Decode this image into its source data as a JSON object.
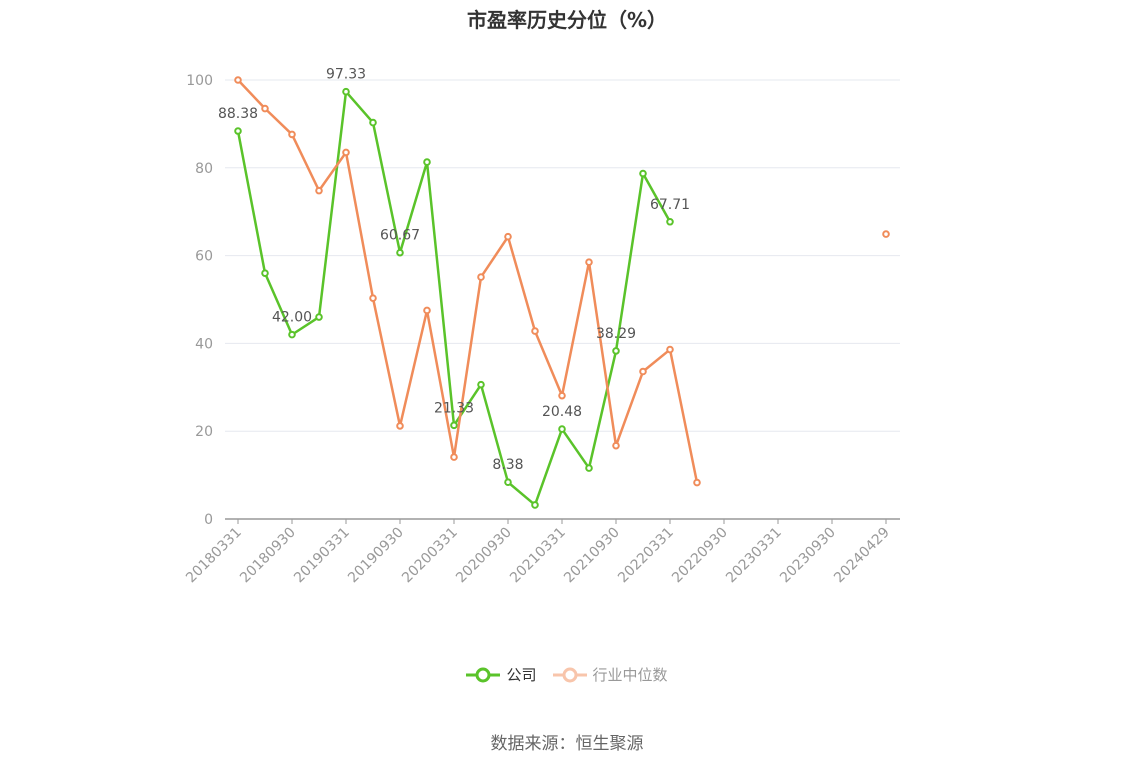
{
  "chart_data": {
    "type": "line",
    "title": "市盈率历史分位（%）",
    "x": [
      "20180331",
      "20180630",
      "20180930",
      "20181231",
      "20190331",
      "20190630",
      "20190930",
      "20191231",
      "20200331",
      "20200630",
      "20200930",
      "20201231",
      "20210331",
      "20210630",
      "20210930",
      "20211231",
      "20220331",
      "20220630",
      "20220930",
      "20221231",
      "20230331",
      "20230630",
      "20230930",
      "20231231",
      "20240429"
    ],
    "x_tick_labels": [
      "20180331",
      "20180930",
      "20190331",
      "20190930",
      "20200331",
      "20200930",
      "20210331",
      "20210930",
      "20220331",
      "20220930",
      "20230331",
      "20230930",
      "20240429"
    ],
    "ylim": [
      0,
      100
    ],
    "y_ticks": [
      0,
      20,
      40,
      60,
      80,
      100
    ],
    "grid": true,
    "legend_position": "bottom",
    "series": [
      {
        "name": "公司",
        "color": "#5ac32a",
        "values": [
          88.38,
          56,
          42.0,
          46,
          97.33,
          90.3,
          60.67,
          81.3,
          21.33,
          30.6,
          8.38,
          3.2,
          20.48,
          11.6,
          38.29,
          78.7,
          67.71,
          null,
          null,
          null,
          null,
          null,
          null,
          null,
          null
        ],
        "labels": {
          "0": "88.38",
          "2": "42.00",
          "4": "97.33",
          "6": "60.67",
          "8": "21.33",
          "10": "8.38",
          "12": "20.48",
          "14": "38.29",
          "16": "67.71"
        }
      },
      {
        "name": "行业中位数",
        "color": "#f08c5a",
        "values": [
          100,
          93.5,
          87.6,
          74.8,
          83.5,
          50.3,
          21.2,
          47.5,
          14.1,
          55.1,
          64.3,
          42.8,
          28.1,
          58.5,
          16.7,
          33.6,
          38.6,
          8.3,
          null,
          null,
          null,
          null,
          null,
          null,
          64.9
        ]
      }
    ]
  },
  "source_text": "数据来源：恒生聚源"
}
